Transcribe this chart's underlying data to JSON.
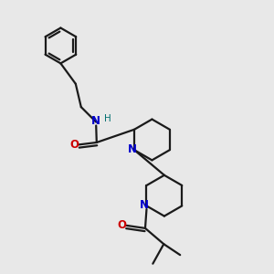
{
  "background_color": "#e8e8e8",
  "bond_color": "#1a1a1a",
  "N_color": "#0000cc",
  "O_color": "#cc0000",
  "H_color": "#007070",
  "line_width": 1.6,
  "figsize": [
    3.0,
    3.0
  ],
  "dpi": 100,
  "xlim": [
    0.0,
    1.0
  ],
  "ylim": [
    0.0,
    1.0
  ]
}
